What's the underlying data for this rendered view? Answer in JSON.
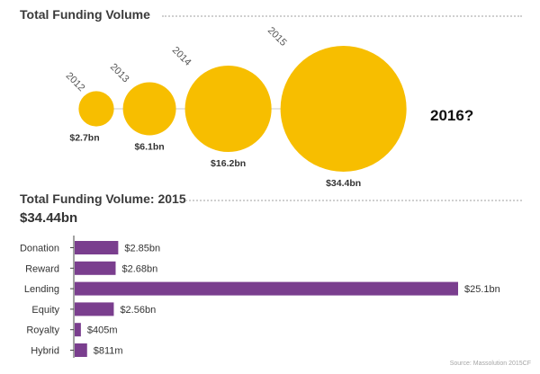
{
  "colors": {
    "bubble": "#F7BE00",
    "bar": "#7A3E8E",
    "connector": "#cccccc",
    "title": "#3a3a3a",
    "label": "#333333",
    "axis": "#444444"
  },
  "chart_data": [
    {
      "type": "bubble",
      "title": "Total Funding Volume",
      "categories": [
        "2012",
        "2013",
        "2014",
        "2015"
      ],
      "values": [
        2.7,
        6.1,
        16.2,
        34.4
      ],
      "value_labels": [
        "$2.7bn",
        "$6.1bn",
        "$16.2bn",
        "$34.4bn"
      ],
      "unit": "bn USD",
      "annotation": "2016?"
    },
    {
      "type": "bar",
      "orientation": "horizontal",
      "title": "Total Funding Volume: 2015",
      "subtitle": "$34.44bn",
      "categories": [
        "Donation",
        "Reward",
        "Lending",
        "Equity",
        "Royalty",
        "Hybrid"
      ],
      "values": [
        2.85,
        2.68,
        25.1,
        2.56,
        0.405,
        0.811
      ],
      "value_labels": [
        "$2.85bn",
        "$2.68bn",
        "$25.1bn",
        "$2.56bn",
        "$405m",
        "$811m"
      ],
      "unit": "bn USD",
      "xlim": [
        0,
        25.1
      ],
      "source": "Source: Massolution 2015CF"
    }
  ]
}
